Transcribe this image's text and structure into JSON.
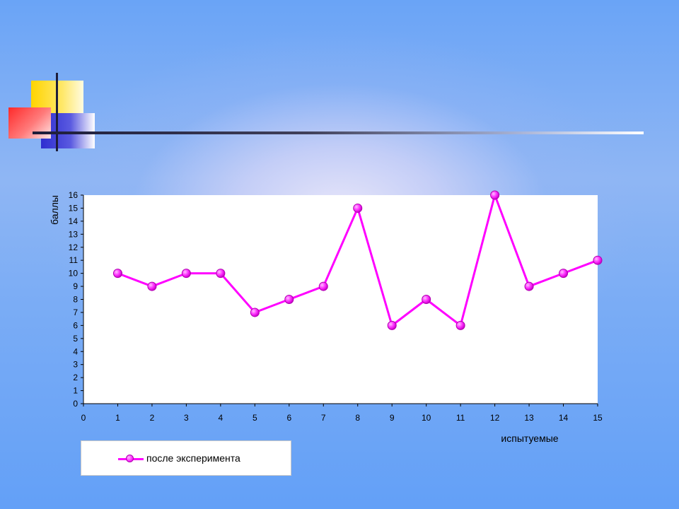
{
  "colors": {
    "background": "#63a0f7",
    "series": "#ff00ff",
    "plot_area": "#ffffff"
  },
  "chart_data": {
    "type": "line",
    "title": "",
    "xlabel": "испытуемые",
    "ylabel": "баллы",
    "xlim": [
      0,
      15
    ],
    "ylim": [
      0,
      16
    ],
    "x_ticks": [
      0,
      1,
      2,
      3,
      4,
      5,
      6,
      7,
      8,
      9,
      10,
      11,
      12,
      13,
      14,
      15
    ],
    "y_ticks": [
      0,
      1,
      2,
      3,
      4,
      5,
      6,
      7,
      8,
      9,
      10,
      11,
      12,
      13,
      14,
      15,
      16
    ],
    "grid": false,
    "legend_position": "bottom-left",
    "series": [
      {
        "name": "после эксперимента",
        "color": "#ff00ff",
        "marker": "circle",
        "x": [
          1,
          2,
          3,
          4,
          5,
          6,
          7,
          8,
          9,
          10,
          11,
          12,
          13,
          14,
          15
        ],
        "values": [
          10,
          9,
          10,
          10,
          7,
          8,
          9,
          15,
          6,
          8,
          6,
          16,
          9,
          10,
          11
        ]
      }
    ]
  }
}
